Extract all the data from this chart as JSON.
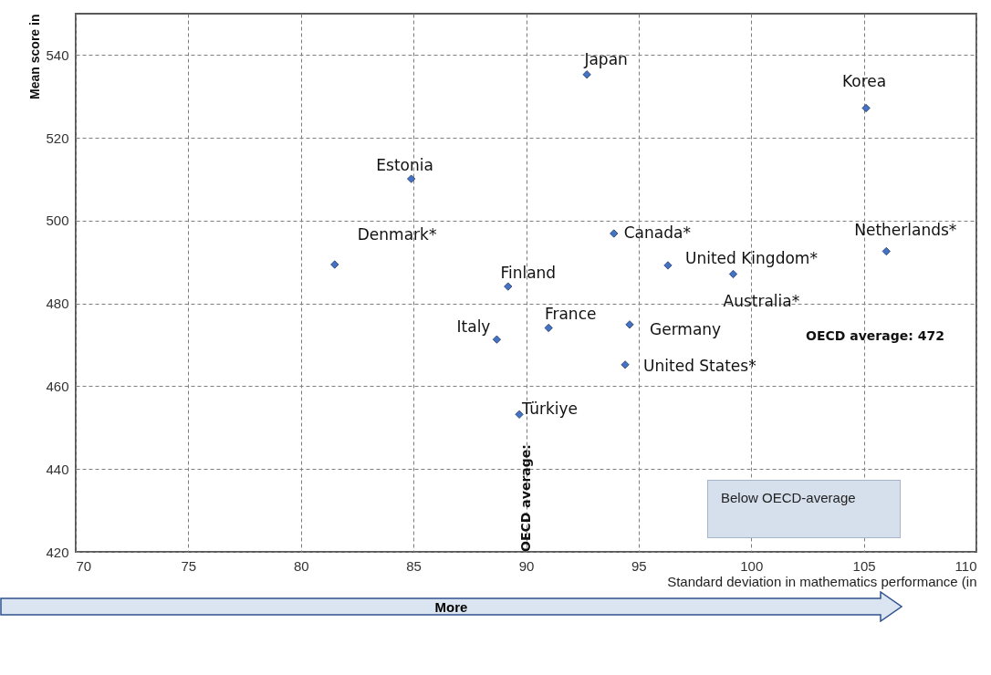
{
  "chart_data": {
    "type": "scatter",
    "xlabel": "Standard deviation in mathematics performance (in",
    "ylabel": "Mean score in",
    "x": [
      92.7,
      105.1,
      84.9,
      93.9,
      106.0,
      81.5,
      96.3,
      99.2,
      89.2,
      91.0,
      94.6,
      88.7,
      94.4,
      89.7
    ],
    "series": [
      {
        "color": "#4472c4",
        "values": [
          535.3,
          527.2,
          510.1,
          496.9,
          492.6,
          489.4,
          489.2,
          487.1,
          484.1,
          474.1,
          474.9,
          471.3,
          465.2,
          453.2
        ]
      }
    ],
    "xlim": [
      70,
      110
    ],
    "xticks": [
      70,
      75,
      80,
      85,
      90,
      95,
      100,
      105,
      110
    ],
    "ylim": [
      420,
      550
    ],
    "yticks": [
      420,
      440,
      460,
      480,
      500,
      520,
      540
    ],
    "grid": true,
    "marker": "diamond",
    "annotations": [
      {
        "text": "Japan",
        "x": 92.7,
        "y": 535.3
      },
      {
        "text": "Korea",
        "x": 105.1,
        "y": 527.2
      },
      {
        "text": "Estonia",
        "x": 84.9,
        "y": 510.1
      },
      {
        "text": "Canada*",
        "x": 93.9,
        "y": 496.9
      },
      {
        "text": "Netherlands*",
        "x": 106.0,
        "y": 492.6
      },
      {
        "text": "Denmark*",
        "x": 81.5,
        "y": 489.4
      },
      {
        "text": "United Kingdom*",
        "x": 96.3,
        "y": 489.2
      },
      {
        "text": "Australia*",
        "x": 99.2,
        "y": 487.1
      },
      {
        "text": "Finland",
        "x": 89.2,
        "y": 484.1
      },
      {
        "text": "France",
        "x": 91.0,
        "y": 474.1
      },
      {
        "text": "Germany",
        "x": 94.6,
        "y": 474.9
      },
      {
        "text": "Italy",
        "x": 88.7,
        "y": 471.3
      },
      {
        "text": "United States*",
        "x": 94.4,
        "y": 465.2
      },
      {
        "text": "Türkiye",
        "x": 89.7,
        "y": 453.2
      },
      "OECD average: 472",
      "OECD average:",
      "Below  OECD-average",
      "More"
    ]
  }
}
